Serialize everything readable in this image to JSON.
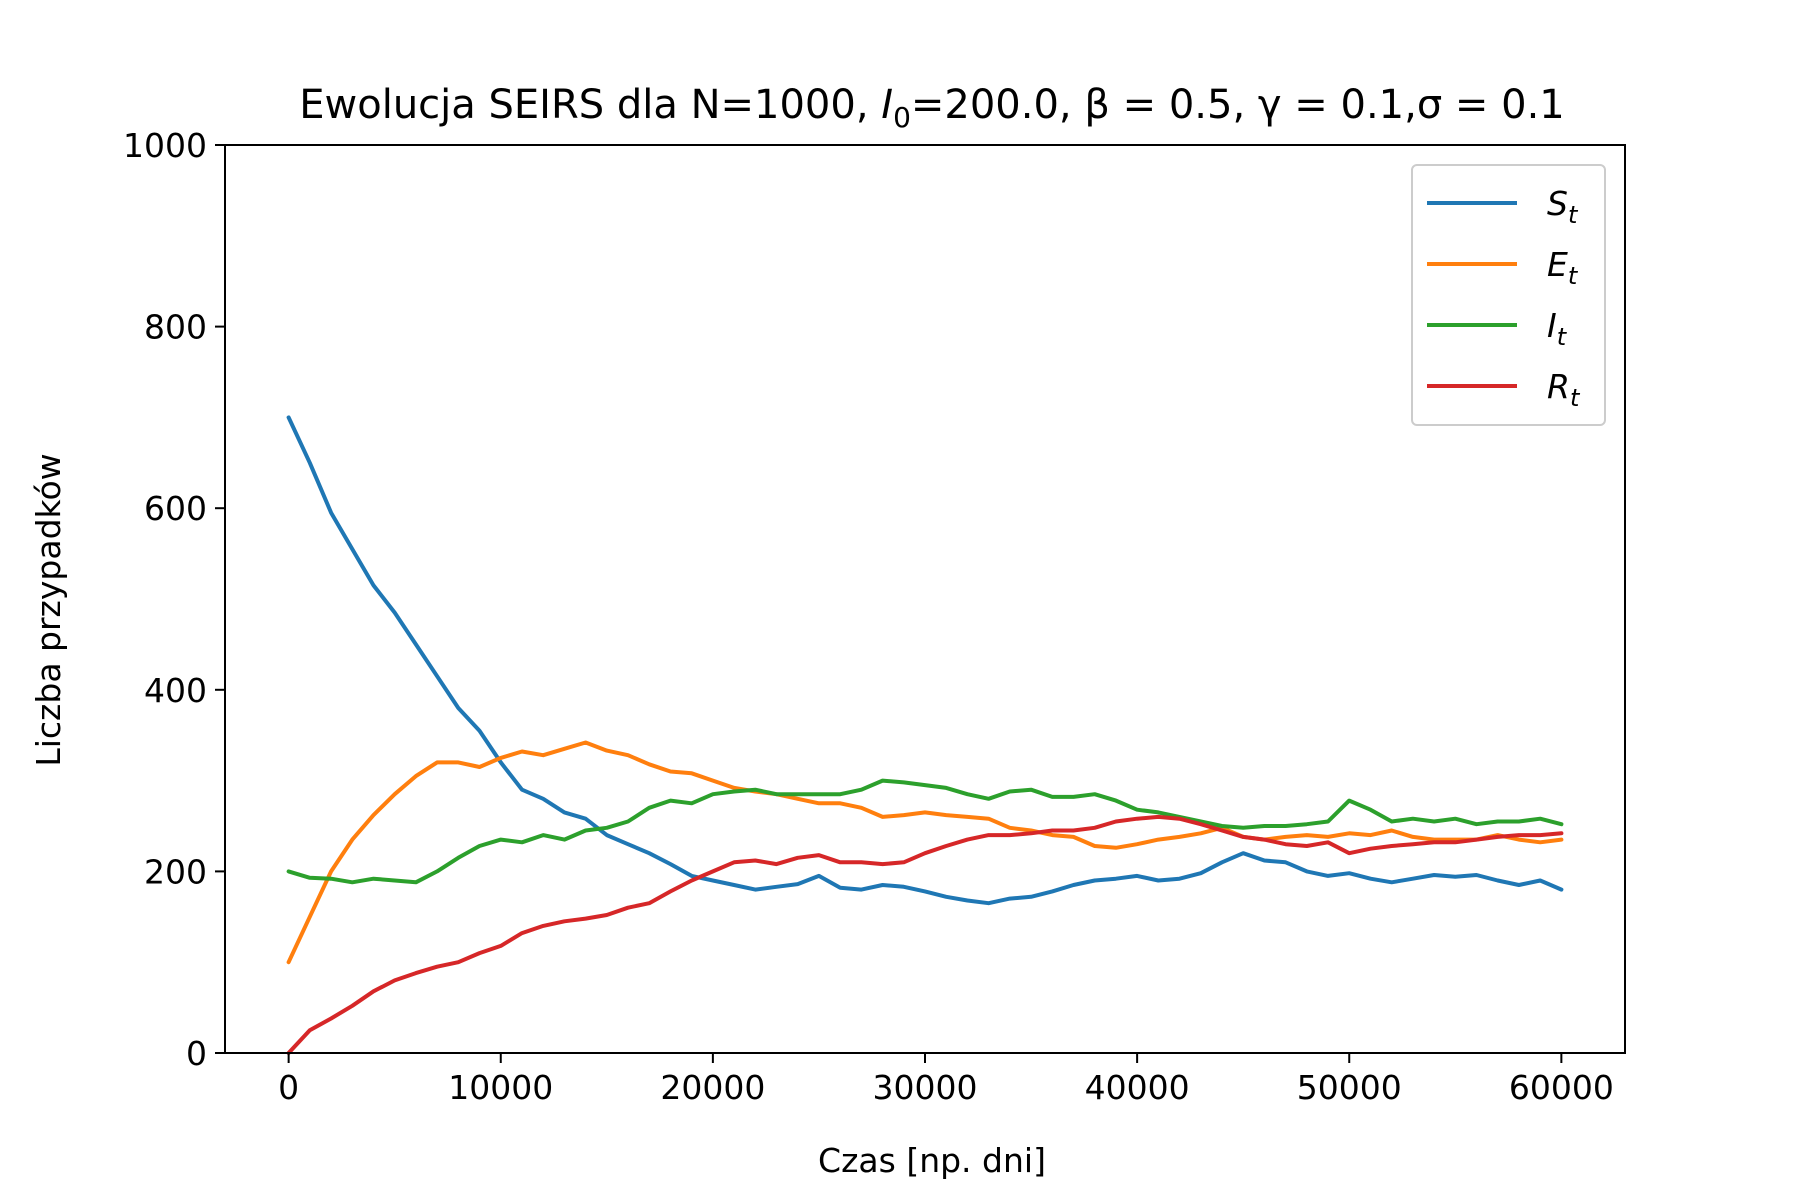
{
  "chart_data": {
    "type": "line",
    "title": {
      "prefix": "Ewolucja SEIRS dla N=1000, ",
      "i0_symbol": "I",
      "i0_sub": "0",
      "i0_value": "=200.0, ",
      "beta": "β = 0.5, ",
      "gamma": "γ = 0.1,",
      "sigma": "σ = 0.1"
    },
    "xlabel": "Czas [np. dni]",
    "ylabel": "Liczba przypadków",
    "xlim": [
      -3000,
      63000
    ],
    "ylim": [
      0,
      1000
    ],
    "xticks": [
      0,
      10000,
      20000,
      30000,
      40000,
      50000,
      60000
    ],
    "xtick_labels": [
      "0",
      "10000",
      "20000",
      "30000",
      "40000",
      "50000",
      "60000"
    ],
    "yticks": [
      0,
      200,
      400,
      600,
      800,
      1000
    ],
    "ytick_labels": [
      "0",
      "200",
      "400",
      "600",
      "800",
      "1000"
    ],
    "grid": false,
    "legend_position": "top-right",
    "x": [
      0,
      1000,
      2000,
      3000,
      4000,
      5000,
      6000,
      7000,
      8000,
      9000,
      10000,
      11000,
      12000,
      13000,
      14000,
      15000,
      16000,
      17000,
      18000,
      19000,
      20000,
      21000,
      22000,
      23000,
      24000,
      25000,
      26000,
      27000,
      28000,
      29000,
      30000,
      31000,
      32000,
      33000,
      34000,
      35000,
      36000,
      37000,
      38000,
      39000,
      40000,
      41000,
      42000,
      43000,
      44000,
      45000,
      46000,
      47000,
      48000,
      49000,
      50000,
      51000,
      52000,
      53000,
      54000,
      55000,
      56000,
      57000,
      58000,
      59000,
      60000
    ],
    "series": [
      {
        "name": "S",
        "name_sub": "t",
        "color": "#1f77b4",
        "values": [
          700,
          650,
          595,
          555,
          515,
          485,
          450,
          415,
          380,
          355,
          320,
          290,
          280,
          265,
          258,
          240,
          230,
          220,
          208,
          195,
          190,
          185,
          180,
          183,
          186,
          195,
          182,
          180,
          185,
          183,
          178,
          172,
          168,
          165,
          170,
          172,
          178,
          185,
          190,
          192,
          195,
          190,
          192,
          198,
          210,
          220,
          212,
          210,
          200,
          195,
          198,
          192,
          188,
          192,
          196,
          194,
          196,
          190,
          185,
          190,
          180
        ]
      },
      {
        "name": "E",
        "name_sub": "t",
        "color": "#ff7f0e",
        "values": [
          100,
          150,
          200,
          235,
          262,
          285,
          305,
          320,
          320,
          315,
          325,
          332,
          328,
          335,
          342,
          333,
          328,
          318,
          310,
          308,
          300,
          292,
          288,
          285,
          280,
          275,
          275,
          270,
          260,
          262,
          265,
          262,
          260,
          258,
          248,
          245,
          240,
          238,
          228,
          226,
          230,
          235,
          238,
          242,
          248,
          238,
          235,
          238,
          240,
          238,
          242,
          240,
          245,
          238,
          235,
          235,
          235,
          240,
          235,
          232,
          235
        ]
      },
      {
        "name": "I",
        "name_sub": "t",
        "color": "#2ca02c",
        "values": [
          200,
          193,
          192,
          188,
          192,
          190,
          188,
          200,
          215,
          228,
          235,
          232,
          240,
          235,
          245,
          248,
          255,
          270,
          278,
          275,
          285,
          288,
          290,
          285,
          285,
          285,
          285,
          290,
          300,
          298,
          295,
          292,
          285,
          280,
          288,
          290,
          282,
          282,
          285,
          278,
          268,
          265,
          260,
          255,
          250,
          248,
          250,
          250,
          252,
          255,
          278,
          268,
          255,
          258,
          255,
          258,
          252,
          255,
          255,
          258,
          252
        ]
      },
      {
        "name": "R",
        "name_sub": "t",
        "color": "#d62728",
        "values": [
          0,
          25,
          38,
          52,
          68,
          80,
          88,
          95,
          100,
          110,
          118,
          132,
          140,
          145,
          148,
          152,
          160,
          165,
          178,
          190,
          200,
          210,
          212,
          208,
          215,
          218,
          210,
          210,
          208,
          210,
          220,
          228,
          235,
          240,
          240,
          242,
          245,
          245,
          248,
          255,
          258,
          260,
          258,
          252,
          245,
          238,
          235,
          230,
          228,
          232,
          220,
          225,
          228,
          230,
          232,
          232,
          235,
          238,
          240,
          240,
          242
        ]
      }
    ]
  }
}
